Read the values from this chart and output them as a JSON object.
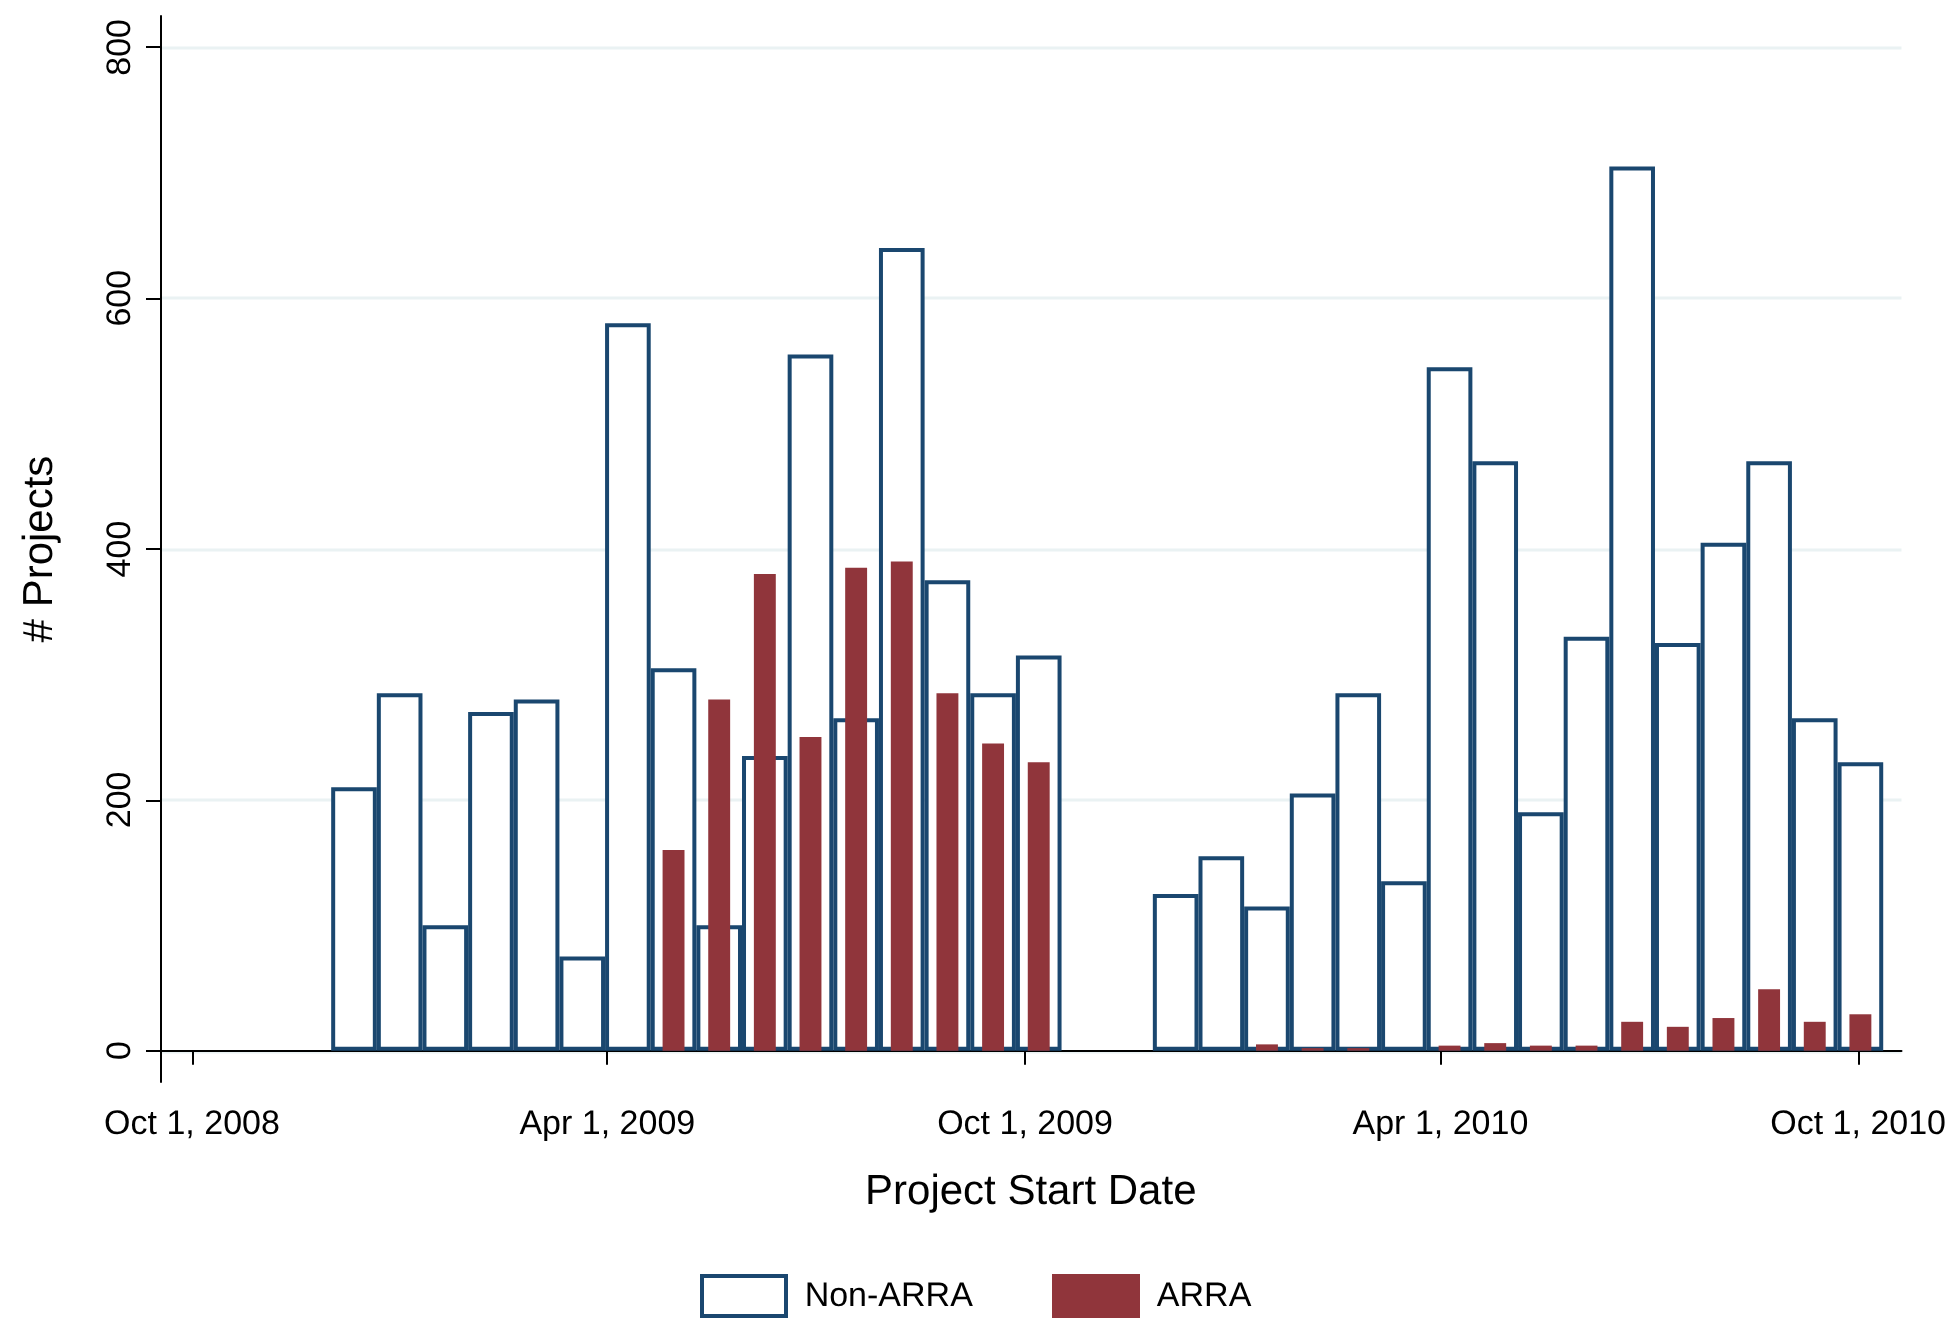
{
  "chart_data": {
    "type": "bar",
    "xlabel": "Project Start Date",
    "ylabel": "# Projects",
    "x": [
      "2008-12-11",
      "2008-12-31",
      "2009-01-20",
      "2009-02-09",
      "2009-03-01",
      "2009-03-21",
      "2009-04-10",
      "2009-04-30",
      "2009-05-20",
      "2009-06-09",
      "2009-06-29",
      "2009-07-19",
      "2009-08-08",
      "2009-08-28",
      "2009-09-17",
      "2009-10-07",
      "2009-10-27",
      "2009-11-16",
      "2009-12-06",
      "2009-12-26",
      "2010-01-15",
      "2010-02-04",
      "2010-02-24",
      "2010-03-16",
      "2010-04-05",
      "2010-04-25",
      "2010-05-15",
      "2010-06-04",
      "2010-06-24",
      "2010-07-14",
      "2010-08-03",
      "2010-08-23",
      "2010-09-12",
      "2010-10-02"
    ],
    "series": [
      {
        "name": "Non-ARRA",
        "color": "#1a476f",
        "values": [
          210,
          285,
          100,
          270,
          280,
          75,
          580,
          305,
          100,
          235,
          555,
          265,
          640,
          375,
          285,
          315,
          null,
          null,
          125,
          155,
          115,
          205,
          285,
          135,
          545,
          470,
          190,
          330,
          705,
          325,
          405,
          470,
          265,
          230
        ]
      },
      {
        "name": "ARRA",
        "color": "#90353b",
        "values": [
          null,
          null,
          null,
          null,
          null,
          null,
          null,
          160,
          280,
          380,
          250,
          385,
          390,
          285,
          245,
          230,
          null,
          null,
          null,
          null,
          5,
          2,
          2,
          null,
          4,
          6,
          4,
          4,
          23,
          19,
          26,
          49,
          23,
          29
        ]
      }
    ],
    "xlim": [
      "2008-09-17",
      "2010-10-20"
    ],
    "xticks": [
      {
        "value": "2008-10-01",
        "label": "Oct 1, 2008"
      },
      {
        "value": "2009-04-01",
        "label": "Apr 1, 2009"
      },
      {
        "value": "2009-10-01",
        "label": "Oct 1, 2009"
      },
      {
        "value": "2010-04-01",
        "label": "Apr 1, 2010"
      },
      {
        "value": "2010-10-01",
        "label": "Oct 1, 2010"
      }
    ],
    "ylim": [
      -25,
      825
    ],
    "yticks": [
      0,
      200,
      400,
      600,
      800
    ],
    "grid": "y",
    "legend": "bottom"
  }
}
